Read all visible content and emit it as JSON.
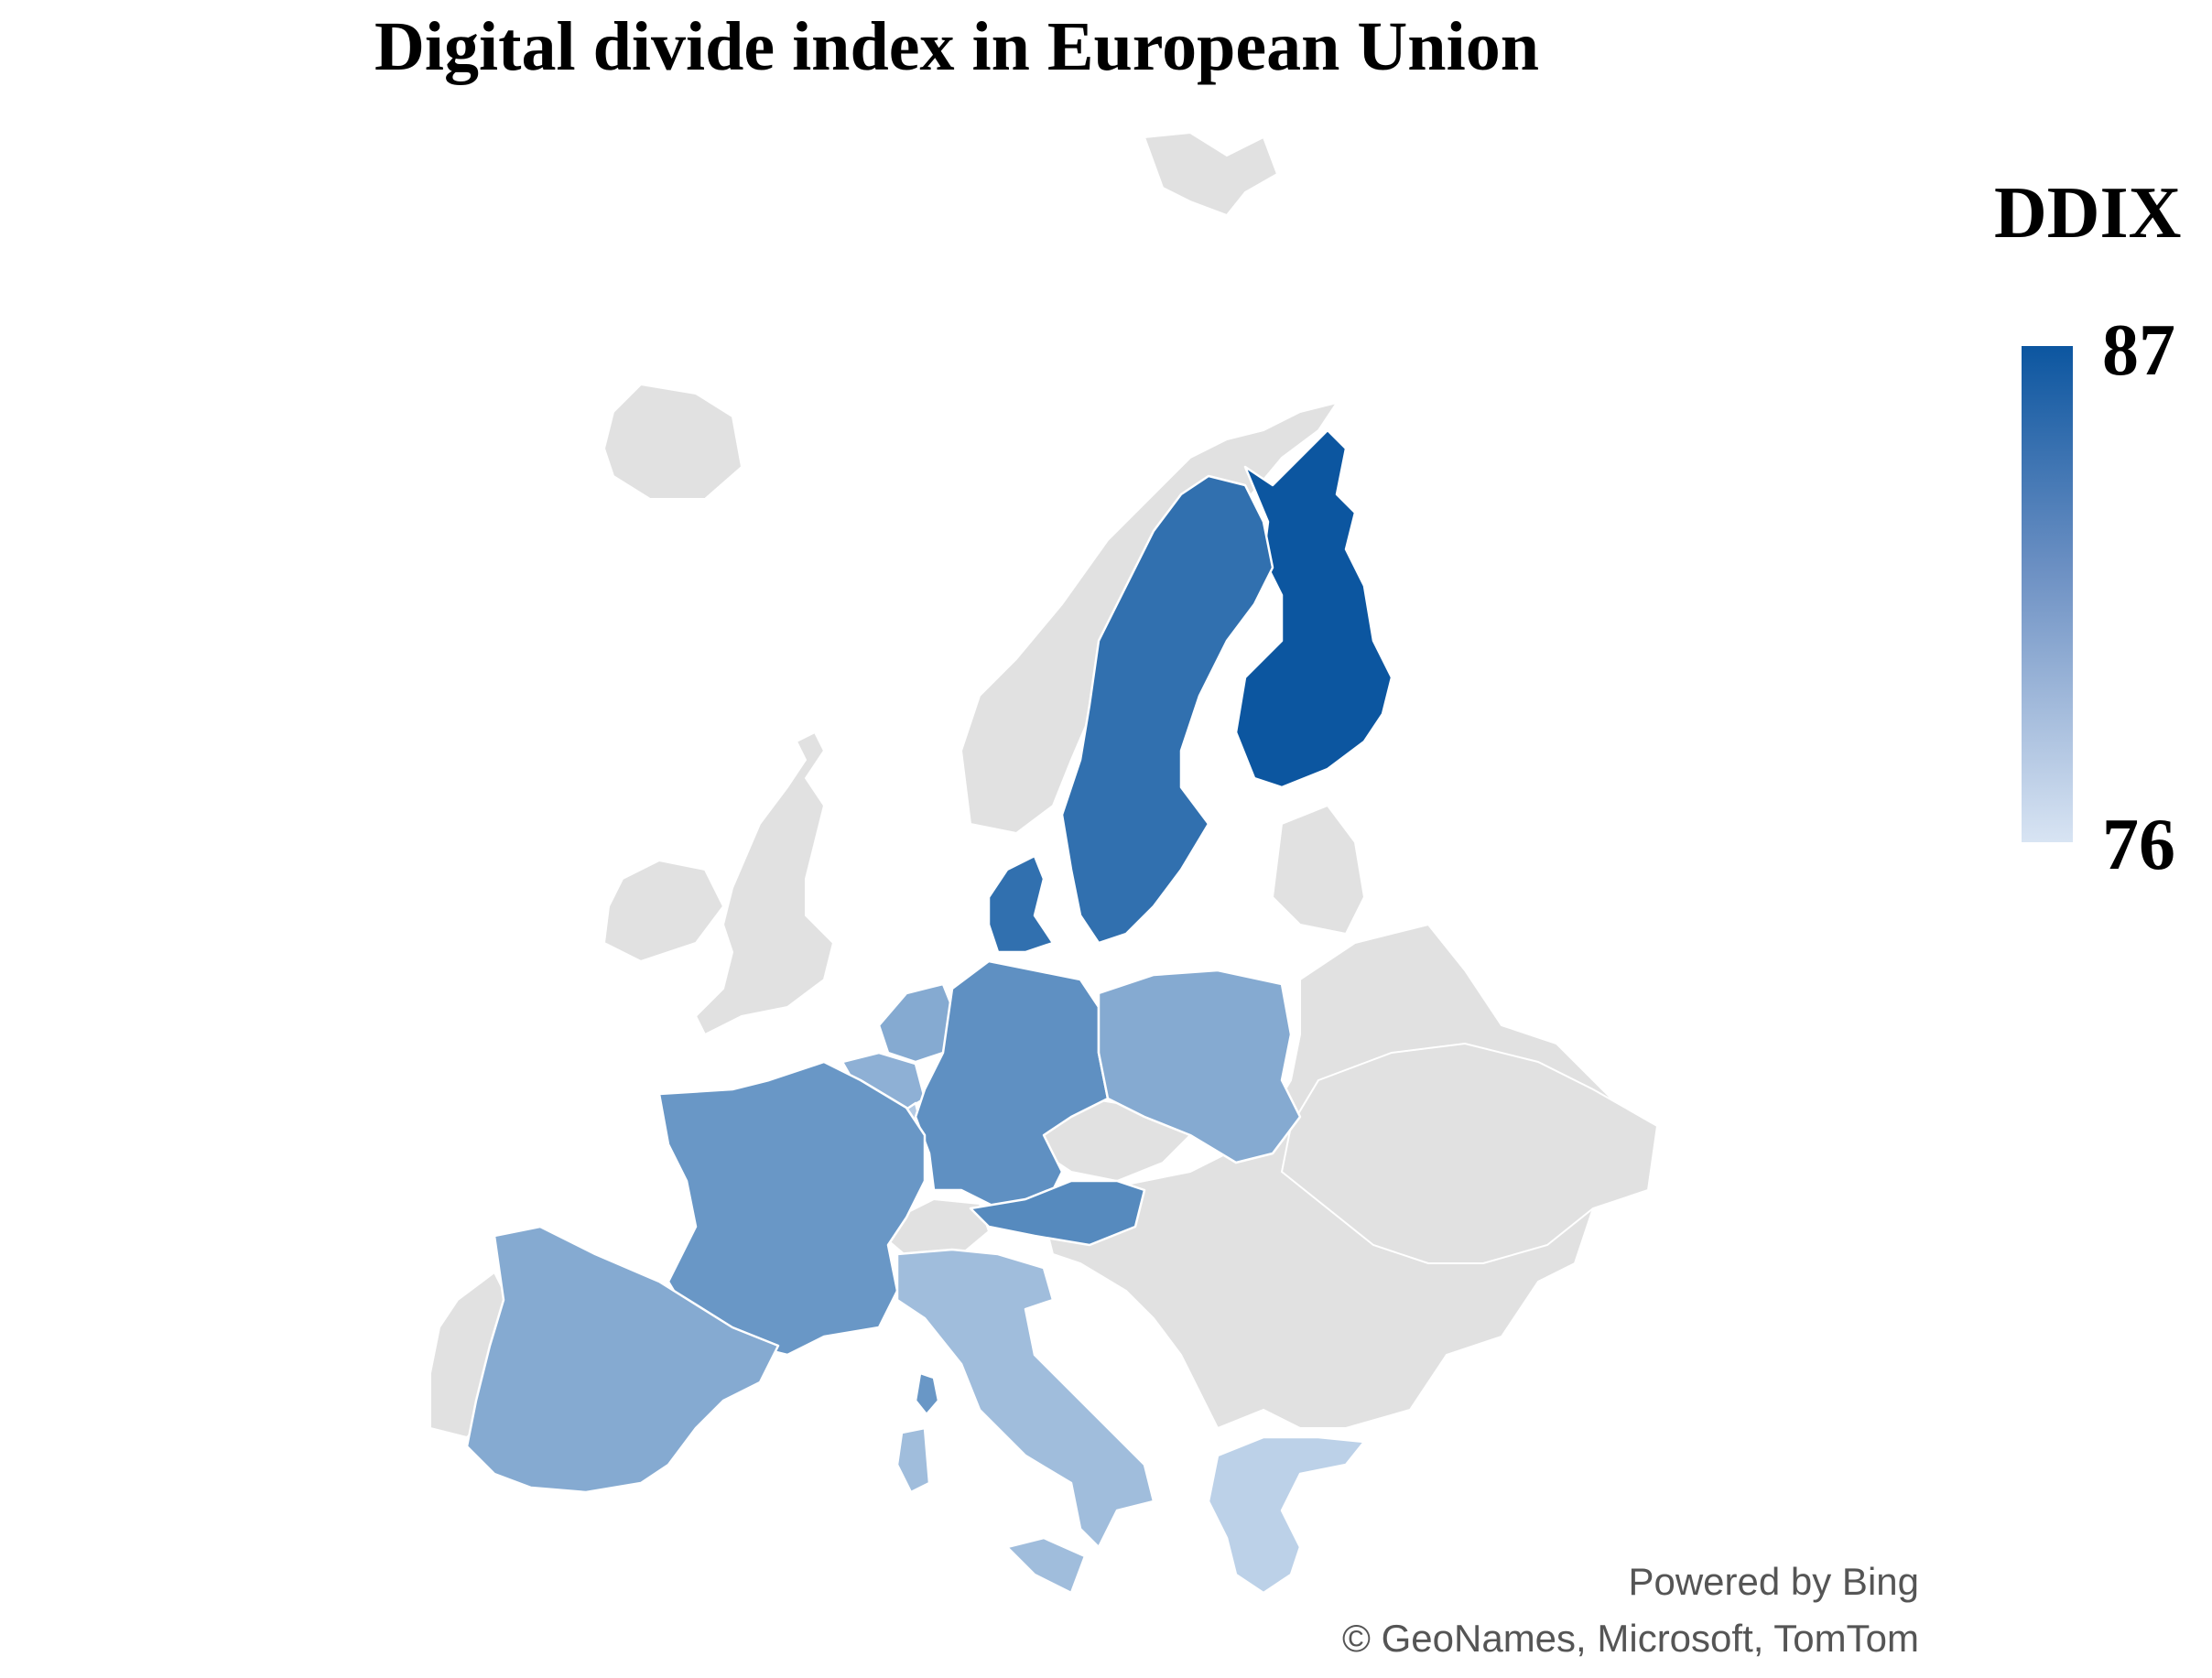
{
  "title": "Digital divide index in European Union",
  "legend": {
    "title": "DDIX",
    "max_label": "87",
    "min_label": "76",
    "max": 87,
    "min": 76,
    "color_max": "#0c56a0",
    "color_min": "#d8e4f3"
  },
  "no_data_color": "#e1e1e1",
  "regions": [
    {
      "name": "Finland",
      "ddix": 87
    },
    {
      "name": "Sweden",
      "ddix": 85
    },
    {
      "name": "Denmark",
      "ddix": 85
    },
    {
      "name": "Netherlands",
      "ddix": 80.5
    },
    {
      "name": "Belgium",
      "ddix": 80
    },
    {
      "name": "Luxembourg",
      "ddix": 78
    },
    {
      "name": "Germany",
      "ddix": 82.5
    },
    {
      "name": "Poland",
      "ddix": 80.5
    },
    {
      "name": "Austria",
      "ddix": 83
    },
    {
      "name": "France",
      "ddix": 82
    },
    {
      "name": "Spain",
      "ddix": 80.5
    },
    {
      "name": "Italy",
      "ddix": 79
    },
    {
      "name": "Corsica",
      "ddix": 82
    },
    {
      "name": "Greece",
      "ddix": 77.5
    }
  ],
  "credits": {
    "line1": "Powered by Bing",
    "line2": "© GeoNames, Microsoft, TomTom"
  }
}
